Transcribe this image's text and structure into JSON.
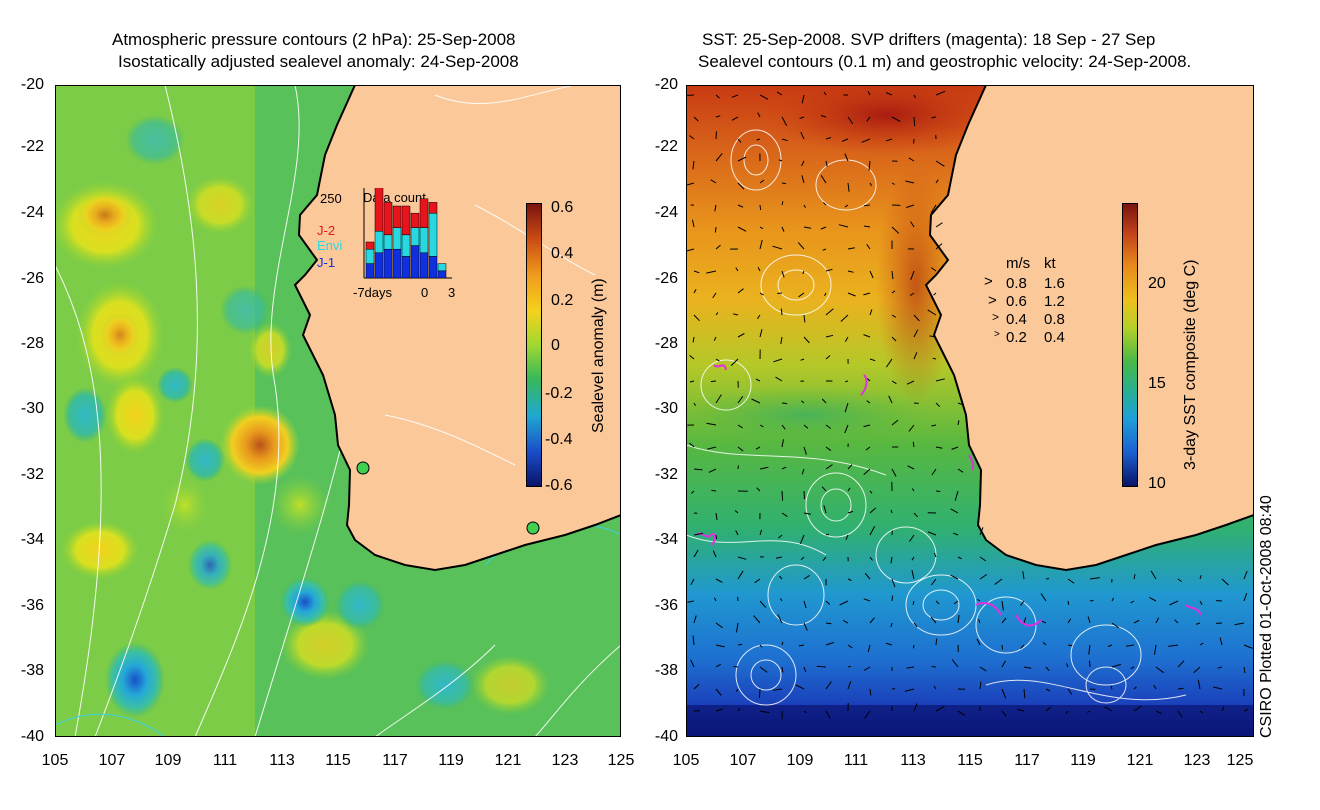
{
  "left_panel": {
    "title_line1": "Atmospheric pressure contours (2 hPa): 25-Sep-2008",
    "title_line2": "Isostatically adjusted sealevel anomaly: 24-Sep-2008",
    "y_ticks": [
      "-20",
      "-22",
      "-24",
      "-26",
      "-28",
      "-30",
      "-32",
      "-34",
      "-36",
      "-38",
      "-40"
    ],
    "x_ticks": [
      "105",
      "107",
      "109",
      "111",
      "113",
      "115",
      "117",
      "119",
      "121",
      "123",
      "125"
    ],
    "colorbar": {
      "label": "Sealevel anomaly (m)",
      "ticks": [
        "0.6",
        "0.4",
        "0.2",
        "0",
        "-0.2",
        "-0.4",
        "-0.6"
      ],
      "range": [
        -0.6,
        0.6
      ]
    },
    "inset": {
      "title": "Data count",
      "max_label": "250",
      "legend": [
        {
          "name": "J-2",
          "color": "#e8141c"
        },
        {
          "name": "Envi",
          "color": "#27d8e0"
        },
        {
          "name": "J-1",
          "color": "#1030e0"
        }
      ],
      "x_labels": [
        "-7days",
        "0",
        "3"
      ],
      "bars": [
        {
          "j1": 40,
          "envi": 40,
          "j2": 20
        },
        {
          "j1": 70,
          "envi": 60,
          "j2": 130
        },
        {
          "j1": 80,
          "envi": 40,
          "j2": 90
        },
        {
          "j1": 80,
          "envi": 60,
          "j2": 60
        },
        {
          "j1": 60,
          "envi": 60,
          "j2": 80
        },
        {
          "j1": 90,
          "envi": 50,
          "j2": 40
        },
        {
          "j1": 70,
          "envi": 70,
          "j2": 80
        },
        {
          "j1": 60,
          "envi": 120,
          "j2": 30
        },
        {
          "j1": 20,
          "envi": 20,
          "j2": 0
        }
      ]
    }
  },
  "right_panel": {
    "title_line1": "SST: 25-Sep-2008. SVP drifters (magenta): 18 Sep - 27 Sep",
    "title_line2": "Sealevel contours (0.1 m) and geostrophic velocity: 24-Sep-2008.",
    "y_ticks": [
      "-20",
      "-22",
      "-24",
      "-26",
      "-28",
      "-30",
      "-32",
      "-34",
      "-36",
      "-38",
      "-40"
    ],
    "x_ticks": [
      "105",
      "107",
      "109",
      "111",
      "113",
      "115",
      "117",
      "119",
      "121",
      "123",
      "125"
    ],
    "colorbar": {
      "label": "3-day SST composite (deg C)",
      "ticks": [
        "20",
        "15",
        "10"
      ],
      "range": [
        10,
        24
      ]
    },
    "velocity_legend": {
      "header_ms": "m/s",
      "header_kt": "kt",
      "rows": [
        {
          "ms": "0.8",
          "kt": "1.6"
        },
        {
          "ms": "0.6",
          "kt": "1.2"
        },
        {
          "ms": "0.4",
          "kt": "0.8"
        },
        {
          "ms": "0.2",
          "kt": "0.4"
        }
      ]
    }
  },
  "credit": "CSIRO Plotted 01-Oct-2008 08:40",
  "colors": {
    "land": "#fbc89a",
    "drifter": "#e030e0",
    "coast": "#000000"
  }
}
